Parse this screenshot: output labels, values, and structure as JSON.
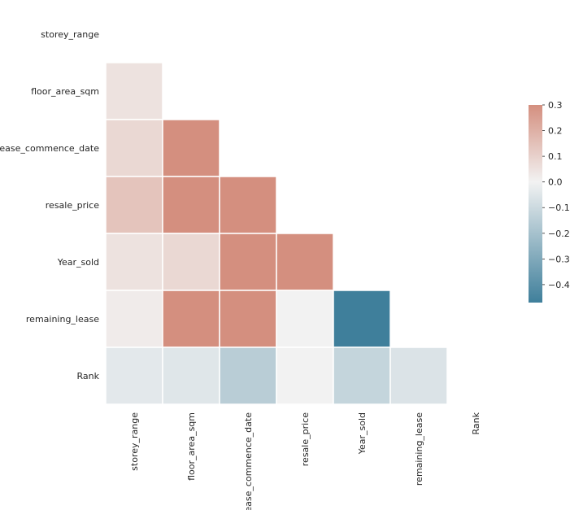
{
  "chart_data": {
    "type": "heatmap",
    "variables": [
      "storey_range",
      "floor_area_sqm",
      "lease_commence_date",
      "resale_price",
      "Year_sold",
      "remaining_lease",
      "Rank"
    ],
    "mask": "upper-triangle-including-diagonal",
    "cells": [
      {
        "row": "floor_area_sqm",
        "col": "storey_range",
        "value": 0.05
      },
      {
        "row": "lease_commence_date",
        "col": "storey_range",
        "value": 0.08
      },
      {
        "row": "lease_commence_date",
        "col": "floor_area_sqm",
        "value": 0.3
      },
      {
        "row": "resale_price",
        "col": "storey_range",
        "value": 0.14
      },
      {
        "row": "resale_price",
        "col": "floor_area_sqm",
        "value": 0.3
      },
      {
        "row": "resale_price",
        "col": "lease_commence_date",
        "value": 0.3
      },
      {
        "row": "Year_sold",
        "col": "storey_range",
        "value": 0.05
      },
      {
        "row": "Year_sold",
        "col": "floor_area_sqm",
        "value": 0.08
      },
      {
        "row": "Year_sold",
        "col": "lease_commence_date",
        "value": 0.3
      },
      {
        "row": "Year_sold",
        "col": "resale_price",
        "value": 0.3
      },
      {
        "row": "remaining_lease",
        "col": "storey_range",
        "value": 0.02
      },
      {
        "row": "remaining_lease",
        "col": "floor_area_sqm",
        "value": 0.3
      },
      {
        "row": "remaining_lease",
        "col": "lease_commence_date",
        "value": 0.3
      },
      {
        "row": "remaining_lease",
        "col": "resale_price",
        "value": 0.0
      },
      {
        "row": "remaining_lease",
        "col": "Year_sold",
        "value": -0.47
      },
      {
        "row": "Rank",
        "col": "storey_range",
        "value": -0.04
      },
      {
        "row": "Rank",
        "col": "floor_area_sqm",
        "value": -0.05
      },
      {
        "row": "Rank",
        "col": "lease_commence_date",
        "value": -0.15
      },
      {
        "row": "Rank",
        "col": "resale_price",
        "value": 0.0
      },
      {
        "row": "Rank",
        "col": "Year_sold",
        "value": -0.12
      },
      {
        "row": "Rank",
        "col": "remaining_lease",
        "value": -0.06
      }
    ],
    "colorbar": {
      "range": [
        -0.47,
        0.3
      ],
      "ticks": [
        0.3,
        0.2,
        0.1,
        0.0,
        -0.1,
        -0.2,
        -0.3,
        -0.4
      ],
      "tick_labels": [
        "0.3",
        "0.2",
        "0.1",
        "0.0",
        "−0.1",
        "−0.2",
        "−0.3",
        "−0.4"
      ]
    },
    "colors": {
      "negative": "#3f7f9b",
      "center": "#f2f2f2",
      "positive": "#d48f7f",
      "grid_line": "#ffffff",
      "text": "#262626"
    }
  }
}
